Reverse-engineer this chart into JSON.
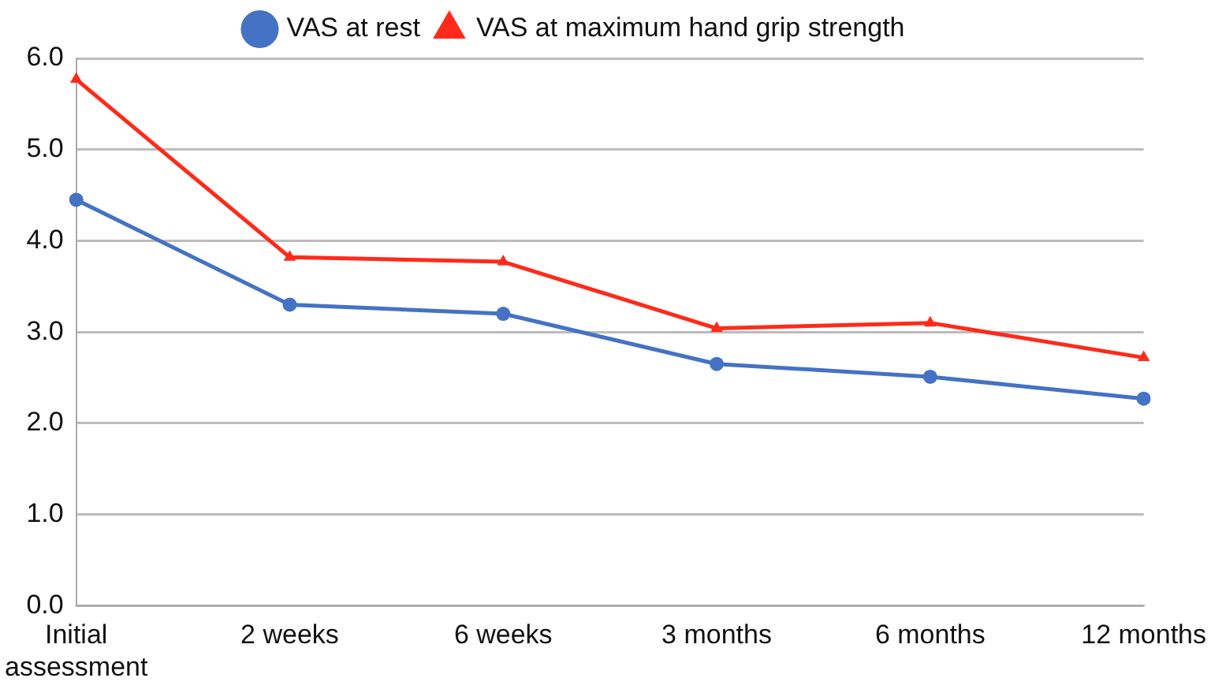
{
  "chart_data": {
    "type": "line",
    "categories": [
      "Initial assessment",
      "2 weeks",
      "6 weeks",
      "3 months",
      "6 months",
      "12 months"
    ],
    "series": [
      {
        "name": "VAS at rest",
        "color": "#4472c4",
        "marker": "circle",
        "values": [
          4.45,
          3.3,
          3.2,
          2.65,
          2.51,
          2.27
        ]
      },
      {
        "name": "VAS at maximum hand grip strength",
        "color": "#ff2a1a",
        "marker": "triangle",
        "values": [
          5.77,
          3.82,
          3.77,
          3.04,
          3.1,
          2.72
        ]
      }
    ],
    "ylim": [
      0,
      6
    ],
    "yticks": [
      {
        "value": 0,
        "label": "0.0"
      },
      {
        "value": 1,
        "label": "1.0"
      },
      {
        "value": 2,
        "label": "2.0"
      },
      {
        "value": 3,
        "label": "3.0"
      },
      {
        "value": 4,
        "label": "4.0"
      },
      {
        "value": 5,
        "label": "5.0"
      },
      {
        "value": 6,
        "label": "6.0"
      }
    ],
    "grid": "y",
    "legend": "top",
    "line_style": "solid"
  }
}
